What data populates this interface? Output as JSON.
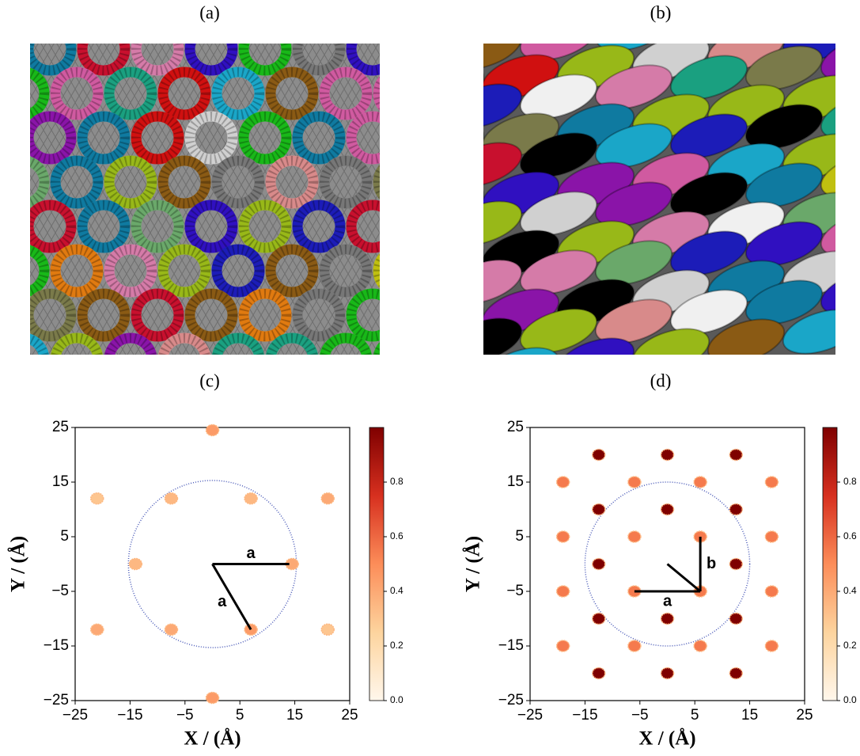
{
  "panel_labels": [
    "(a)",
    "(b)",
    "(c)",
    "(d)"
  ],
  "chart_data": [
    {
      "type": "scatter",
      "xlabel": "X / (Å)",
      "ylabel": "Y / (Å)",
      "x": [
        0,
        0,
        -21,
        21,
        -21,
        21,
        -7.5,
        7,
        -14,
        14.5,
        -7.5,
        7
      ],
      "y": [
        24.5,
        -24.5,
        12,
        12,
        -12,
        -12,
        12,
        12,
        0,
        0,
        -12,
        -12
      ],
      "values": [
        0.45,
        0.45,
        0.3,
        0.4,
        0.4,
        0.3,
        0.35,
        0.35,
        0.35,
        0.4,
        0.4,
        0.45
      ],
      "xlim": [
        -25,
        25
      ],
      "ylim": [
        -25,
        25
      ],
      "xticks": [
        {
          "value": -25,
          "label": "−25"
        },
        {
          "value": -15,
          "label": "−15"
        },
        {
          "value": -5,
          "label": "−5"
        },
        5,
        15,
        25
      ],
      "yticks": [
        {
          "value": -25,
          "label": "−25"
        },
        {
          "value": -15,
          "label": "−15"
        },
        {
          "value": -5,
          "label": "−5"
        },
        5,
        15,
        25
      ],
      "circle_radius": 15.3,
      "circle_color": "#4a5ab8",
      "annotations": [
        {
          "label": "a",
          "x": [
            0,
            14
          ],
          "y": [
            0,
            0
          ]
        },
        {
          "label": "a",
          "x": [
            0,
            7
          ],
          "y": [
            0,
            -12
          ]
        }
      ],
      "clim": [
        0,
        1
      ],
      "cticks": [
        {
          "value": 0,
          "label": "0.0"
        },
        0.2,
        0.4,
        0.6,
        0.8
      ],
      "colormap": [
        "#fff7ec",
        "#fdd49e",
        "#fc8d59",
        "#d7301f",
        "#7f0000"
      ]
    },
    {
      "type": "scatter",
      "xlabel": "X / (Å)",
      "ylabel": "Y / (Å)",
      "x": [
        -12.5,
        0,
        12.5,
        -19,
        -6,
        6,
        19,
        -12.5,
        0,
        12.5,
        -19,
        -6,
        6,
        19,
        -12.5,
        12.5,
        -19,
        -6,
        6,
        19,
        -12.5,
        0,
        12.5,
        -19,
        -6,
        6,
        19,
        -12.5,
        0,
        12.5
      ],
      "y": [
        20,
        20,
        20,
        15,
        15,
        15,
        15,
        10,
        10,
        10,
        5,
        5,
        5,
        5,
        0,
        0,
        -5,
        -5,
        -5,
        -5,
        -10,
        -10,
        -10,
        -15,
        -15,
        -15,
        -15,
        -20,
        -20,
        -20
      ],
      "values": [
        1,
        1,
        1,
        0.55,
        0.55,
        0.55,
        0.55,
        1,
        1,
        1,
        0.55,
        0.55,
        0.55,
        0.55,
        1,
        1,
        0.55,
        0.55,
        0.55,
        0.55,
        1,
        1,
        1,
        0.55,
        0.55,
        0.55,
        0.55,
        1,
        1,
        1
      ],
      "xlim": [
        -25,
        25
      ],
      "ylim": [
        -25,
        25
      ],
      "xticks": [
        {
          "value": -25,
          "label": "−25"
        },
        {
          "value": -15,
          "label": "−15"
        },
        {
          "value": -5,
          "label": "−5"
        },
        5,
        15,
        25
      ],
      "yticks": [
        {
          "value": -25,
          "label": "−25"
        },
        {
          "value": -15,
          "label": "−15"
        },
        {
          "value": -5,
          "label": "−5"
        },
        5,
        15,
        25
      ],
      "circle_radius": 15,
      "circle_color": "#4a5ab8",
      "annotations": [
        {
          "label": "a",
          "x": [
            -6,
            6
          ],
          "y": [
            -5,
            -5
          ]
        },
        {
          "label": "b",
          "x": [
            6,
            6
          ],
          "y": [
            -5,
            5
          ]
        },
        {
          "x": [
            6,
            0
          ],
          "y": [
            -5,
            0
          ]
        }
      ],
      "clim": [
        0,
        1
      ],
      "cticks": [
        {
          "value": 0,
          "label": "0.0"
        },
        0.2,
        0.4,
        0.6,
        0.8
      ],
      "colormap": [
        "#fff7ec",
        "#fdd49e",
        "#fc8d59",
        "#d7301f",
        "#7f0000"
      ]
    }
  ]
}
